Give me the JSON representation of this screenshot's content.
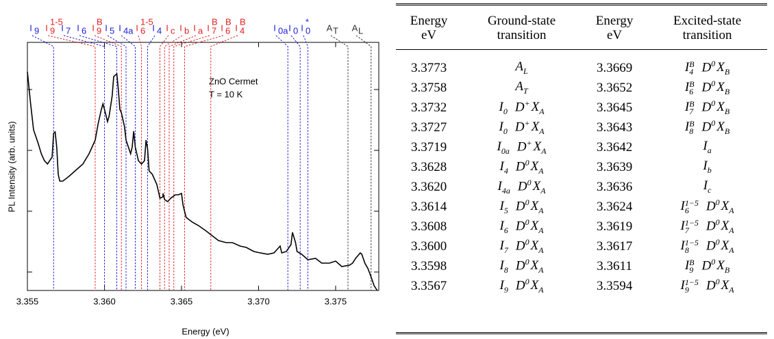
{
  "chart_data": {
    "type": "line",
    "xlabel": "Energy (eV)",
    "ylabel": "PL Intensity (arb. units)",
    "xlim": [
      3.355,
      3.3778
    ],
    "xticks": [
      3.355,
      {
        "value": 3.36,
        "label": "3.360"
      },
      3.365,
      {
        "value": 3.37,
        "label": "3.370"
      },
      3.375
    ],
    "ylim": [
      0,
      363
    ],
    "yticks": [
      27,
      116,
      205,
      294
    ],
    "log_y": false,
    "annotations": [
      "ZnO Cermet",
      "T = 10 K"
    ],
    "x": [
      3.355,
      3.3552,
      3.3554,
      3.3557,
      3.3559,
      3.3561,
      3.3563,
      3.3566,
      3.3567,
      3.3568,
      3.3569,
      3.357,
      3.3571,
      3.3573,
      3.3577,
      3.3581,
      3.3586,
      3.359,
      3.3594,
      3.3596,
      3.3598,
      3.3599,
      3.36,
      3.3602,
      3.3603,
      3.3605,
      3.3606,
      3.3608,
      3.3609,
      3.361,
      3.3611,
      3.3613,
      3.3614,
      3.3617,
      3.3618,
      3.3619,
      3.362,
      3.3622,
      3.3624,
      3.3626,
      3.3627,
      3.3628,
      3.3629,
      3.3631,
      3.3633,
      3.3634,
      3.3636,
      3.3638,
      3.3638,
      3.3639,
      3.3641,
      3.3643,
      3.3646,
      3.3648,
      3.365,
      3.3651,
      3.3653,
      3.3657,
      3.3661,
      3.3666,
      3.367,
      3.3674,
      3.3679,
      3.3683,
      3.3688,
      3.3692,
      3.3697,
      3.3701,
      3.3706,
      3.371,
      3.3712,
      3.3714,
      3.3715,
      3.3718,
      3.3721,
      3.3722,
      3.3724,
      3.3725,
      3.3728,
      3.3732,
      3.3737,
      3.3741,
      3.3746,
      3.375,
      3.3754,
      3.3759,
      3.3761,
      3.3763,
      3.3766,
      3.3767,
      3.3769,
      3.3771,
      3.3773,
      3.3775,
      3.3777
    ],
    "series": [
      {
        "color": "#000000",
        "values": [
          320,
          275,
          235,
          215,
          200,
          190,
          185,
          195,
          230,
          232,
          210,
          170,
          160,
          160,
          167,
          175,
          185,
          200,
          220,
          245,
          265,
          273,
          265,
          247,
          255,
          285,
          313,
          317,
          295,
          265,
          260,
          240,
          220,
          200,
          210,
          233,
          210,
          190,
          185,
          190,
          220,
          207,
          175,
          170,
          160,
          155,
          135,
          137,
          142,
          133,
          130,
          135,
          140,
          140,
          142,
          125,
          107,
          100,
          95,
          87,
          80,
          73,
          70,
          70,
          65,
          63,
          57,
          55,
          53,
          55,
          60,
          65,
          55,
          57,
          67,
          85,
          70,
          57,
          53,
          45,
          47,
          40,
          40,
          43,
          35,
          37,
          40,
          47,
          55,
          53,
          40,
          32,
          20,
          7,
          0
        ]
      }
    ],
    "markers": [
      {
        "label": {
          "t": "I",
          "sub": "9"
        },
        "x": 3.3567,
        "color": "#1c1cd6"
      },
      {
        "label": {
          "t": "I",
          "sub": "9",
          "sup": "1-5"
        },
        "x": 3.3594,
        "color": "#e02020"
      },
      {
        "label": {
          "t": "I",
          "sub": "7"
        },
        "x": 3.36,
        "color": "#1c1cd6"
      },
      {
        "label": {
          "t": "I",
          "sub": "6"
        },
        "x": 3.3608,
        "color": "#1c1cd6"
      },
      {
        "label": {
          "t": "I",
          "sub": "9",
          "sup": "B"
        },
        "x": 3.3611,
        "color": "#e02020"
      },
      {
        "label": {
          "t": "I",
          "sub": "5"
        },
        "x": 3.3614,
        "color": "#1c1cd6"
      },
      {
        "label": {
          "t": "I",
          "sub": "4a"
        },
        "x": 3.362,
        "color": "#1c1cd6"
      },
      {
        "label": {
          "t": "I",
          "sub": "6",
          "sup": "1-5"
        },
        "x": 3.3624,
        "color": "#e02020"
      },
      {
        "label": {
          "t": "I",
          "sub": "4"
        },
        "x": 3.3628,
        "color": "#1c1cd6"
      },
      {
        "label": {
          "t": "I",
          "sub": "c"
        },
        "x": 3.3636,
        "color": "#e02020"
      },
      {
        "label": {
          "t": "I",
          "sub": "b"
        },
        "x": 3.3639,
        "color": "#e02020"
      },
      {
        "label": {
          "t": "I",
          "sub": "a"
        },
        "x": 3.3642,
        "color": "#e02020"
      },
      {
        "label": {
          "t": "I",
          "sub": "7",
          "sup": "B"
        },
        "x": 3.3645,
        "color": "#e02020"
      },
      {
        "label": {
          "t": "I",
          "sub": "6",
          "sup": "B"
        },
        "x": 3.3652,
        "color": "#e02020"
      },
      {
        "label": {
          "t": "I",
          "sub": "4",
          "sup": "B"
        },
        "x": 3.3669,
        "color": "#e02020"
      },
      {
        "label": {
          "t": "I",
          "sub": "0a"
        },
        "x": 3.3719,
        "color": "#1c1cd6"
      },
      {
        "label": {
          "t": "I",
          "sub": "0"
        },
        "x": 3.3727,
        "color": "#1c1cd6"
      },
      {
        "label": {
          "t": "I",
          "sub": "0",
          "sup": "*"
        },
        "x": 3.3732,
        "color": "#1c1cd6"
      },
      {
        "label": {
          "t": "A",
          "sub": "T"
        },
        "x": 3.3758,
        "color": "#333333"
      },
      {
        "label": {
          "t": "A",
          "sub": "L"
        },
        "x": 3.3773,
        "color": "#333333"
      }
    ]
  },
  "table": {
    "header": [
      [
        "Energy",
        "eV"
      ],
      [
        "Ground-state",
        "transition"
      ],
      [
        "Energy",
        "eV"
      ],
      [
        "Excited-state",
        "transition"
      ]
    ],
    "rows": [
      [
        "3.3773",
        [
          {
            "t": "A",
            "sub": "L"
          }
        ],
        "3.3669",
        [
          {
            "t": "I",
            "sub": "4",
            "sup": "B"
          },
          {
            "t": "D",
            "sup": "0"
          },
          {
            "t": "X",
            "sub": "B"
          }
        ]
      ],
      [
        "3.3758",
        [
          {
            "t": "A",
            "sub": "T"
          }
        ],
        "3.3652",
        [
          {
            "t": "I",
            "sub": "6",
            "sup": "B"
          },
          {
            "t": "D",
            "sup": "0"
          },
          {
            "t": "X",
            "sub": "B"
          }
        ]
      ],
      [
        "3.3732",
        [
          {
            "t": "I",
            "sub": "0"
          },
          {
            "t": "D",
            "sup": "+"
          },
          {
            "t": "X",
            "sub": "A"
          }
        ],
        "3.3645",
        [
          {
            "t": "I",
            "sub": "7",
            "sup": "B"
          },
          {
            "t": "D",
            "sup": "0"
          },
          {
            "t": "X",
            "sub": "B"
          }
        ]
      ],
      [
        "3.3727",
        [
          {
            "t": "I",
            "sub": "0"
          },
          {
            "t": "D",
            "sup": "+"
          },
          {
            "t": "X",
            "sub": "A"
          }
        ],
        "3.3643",
        [
          {
            "t": "I",
            "sub": "8",
            "sup": "B"
          },
          {
            "t": "D",
            "sup": "0"
          },
          {
            "t": "X",
            "sub": "B"
          }
        ]
      ],
      [
        "3.3719",
        [
          {
            "t": "I",
            "sub": "0a"
          },
          {
            "t": "D",
            "sup": "+"
          },
          {
            "t": "X",
            "sub": "A"
          }
        ],
        "3.3642",
        [
          {
            "t": "I",
            "sub": "a"
          }
        ]
      ],
      [
        "3.3628",
        [
          {
            "t": "I",
            "sub": "4"
          },
          {
            "t": "D",
            "sup": "0"
          },
          {
            "t": "X",
            "sub": "A"
          }
        ],
        "3.3639",
        [
          {
            "t": "I",
            "sub": "b"
          }
        ]
      ],
      [
        "3.3620",
        [
          {
            "t": "I",
            "sub": "4a"
          },
          {
            "t": "D",
            "sup": "0"
          },
          {
            "t": "X",
            "sub": "A"
          }
        ],
        "3.3636",
        [
          {
            "t": "I",
            "sub": "c"
          }
        ]
      ],
      [
        "3.3614",
        [
          {
            "t": "I",
            "sub": "5"
          },
          {
            "t": "D",
            "sup": "0"
          },
          {
            "t": "X",
            "sub": "A"
          }
        ],
        "3.3624",
        [
          {
            "t": "I",
            "sub": "6",
            "sup": "1−5"
          },
          {
            "t": "D",
            "sup": "0"
          },
          {
            "t": "X",
            "sub": "A"
          }
        ]
      ],
      [
        "3.3608",
        [
          {
            "t": "I",
            "sub": "6"
          },
          {
            "t": "D",
            "sup": "0"
          },
          {
            "t": "X",
            "sub": "A"
          }
        ],
        "3.3619",
        [
          {
            "t": "I",
            "sub": "7",
            "sup": "1−5"
          },
          {
            "t": "D",
            "sup": "0"
          },
          {
            "t": "X",
            "sub": "A"
          }
        ]
      ],
      [
        "3.3600",
        [
          {
            "t": "I",
            "sub": "7"
          },
          {
            "t": "D",
            "sup": "0"
          },
          {
            "t": "X",
            "sub": "A"
          }
        ],
        "3.3617",
        [
          {
            "t": "I",
            "sub": "8",
            "sup": "1−5"
          },
          {
            "t": "D",
            "sup": "0"
          },
          {
            "t": "X",
            "sub": "A"
          }
        ]
      ],
      [
        "3.3598",
        [
          {
            "t": "I",
            "sub": "8"
          },
          {
            "t": "D",
            "sup": "0"
          },
          {
            "t": "X",
            "sub": "A"
          }
        ],
        "3.3611",
        [
          {
            "t": "I",
            "sub": "9",
            "sup": "B"
          },
          {
            "t": "D",
            "sup": "0"
          },
          {
            "t": "X",
            "sub": "B"
          }
        ]
      ],
      [
        "3.3567",
        [
          {
            "t": "I",
            "sub": "9"
          },
          {
            "t": "D",
            "sup": "0"
          },
          {
            "t": "X",
            "sub": "A"
          }
        ],
        "3.3594",
        [
          {
            "t": "I",
            "sub": "9",
            "sup": "1−5"
          },
          {
            "t": "D",
            "sup": "0"
          },
          {
            "t": "X",
            "sub": "A"
          }
        ]
      ]
    ]
  }
}
